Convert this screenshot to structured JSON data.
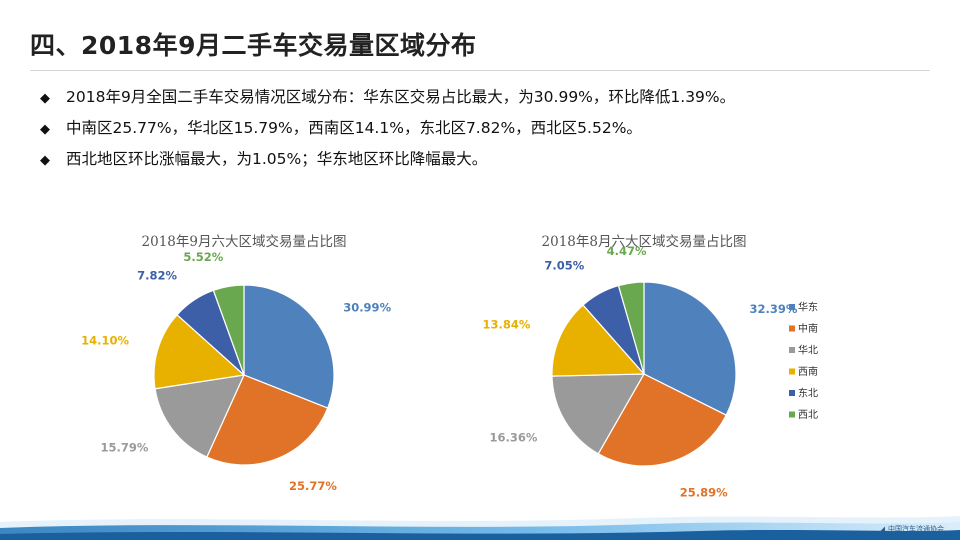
{
  "title": "四、2018年9月二手车交易量区域分布",
  "bullets": [
    "2018年9月全国二手车交易情况区域分布：华东区交易占比最大，为30.99%，环比降低1.39%。",
    "中南区25.77%，华北区15.79%，西南区14.1%，东北区7.82%，西北区5.52%。",
    "西北地区环比涨幅最大，为1.05%；华东地区环比降幅最大。"
  ],
  "bullet_icon": "diamond-bullet-icon",
  "legend": {
    "items": [
      "华东",
      "中南",
      "华北",
      "西南",
      "东北",
      "西北"
    ],
    "colors": [
      "#4f81bd",
      "#e07327",
      "#9a9a9a",
      "#e8b100",
      "#3d5fa8",
      "#6aa84f"
    ]
  },
  "logo_text": "中国汽车流通协会",
  "chart_data": [
    {
      "type": "pie",
      "title": "2018年9月六大区域交易量占比图",
      "categories": [
        "华东",
        "中南",
        "华北",
        "西南",
        "东北",
        "西北"
      ],
      "values": [
        30.99,
        25.77,
        15.79,
        14.1,
        7.82,
        5.52
      ],
      "labels": [
        "30.99%",
        "25.77%",
        "15.79%",
        "14.10%",
        "7.82%",
        "5.52%"
      ]
    },
    {
      "type": "pie",
      "title": "2018年8月六大区域交易量占比图",
      "categories": [
        "华东",
        "中南",
        "华北",
        "西南",
        "东北",
        "西北"
      ],
      "values": [
        32.39,
        25.89,
        16.36,
        13.84,
        7.05,
        4.47
      ],
      "labels": [
        "32.39%",
        "25.89%",
        "16.36%",
        "13.84%",
        "7.05%",
        "4.47%"
      ]
    }
  ]
}
